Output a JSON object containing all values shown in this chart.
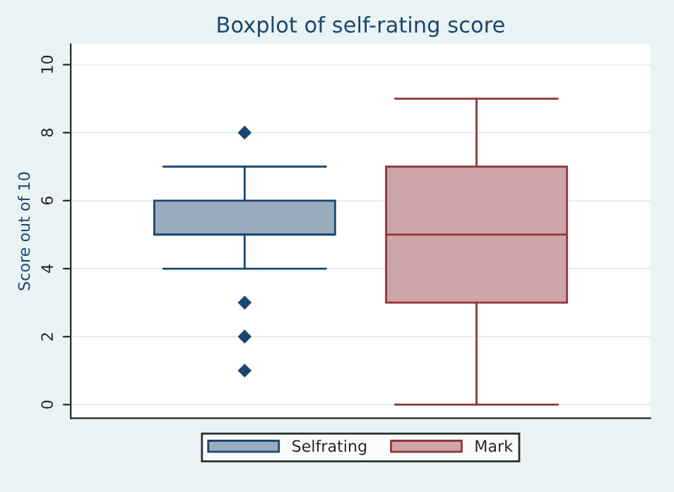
{
  "chart_data": {
    "type": "box",
    "title": "Boxplot of self-rating score",
    "ylabel": "Score out of 10",
    "categories": [
      null
    ],
    "series": [
      {
        "name": "Selfrating",
        "color": "#1a476f",
        "boxes": [
          {
            "low": 4,
            "q1": 5,
            "median": 5,
            "q3": 6,
            "high": 7,
            "outliers": [
              8,
              3,
              2,
              1
            ]
          }
        ]
      },
      {
        "name": "Mark",
        "color": "#90353b",
        "boxes": [
          {
            "low": 0,
            "q1": 3,
            "median": 5,
            "q3": 7,
            "high": 9
          }
        ]
      }
    ],
    "ylim": [
      -0.4,
      10.6
    ],
    "yticks": [
      0,
      2,
      4,
      6,
      8,
      10
    ],
    "grid": "y",
    "legend": "bottom",
    "marker": "diamond"
  }
}
